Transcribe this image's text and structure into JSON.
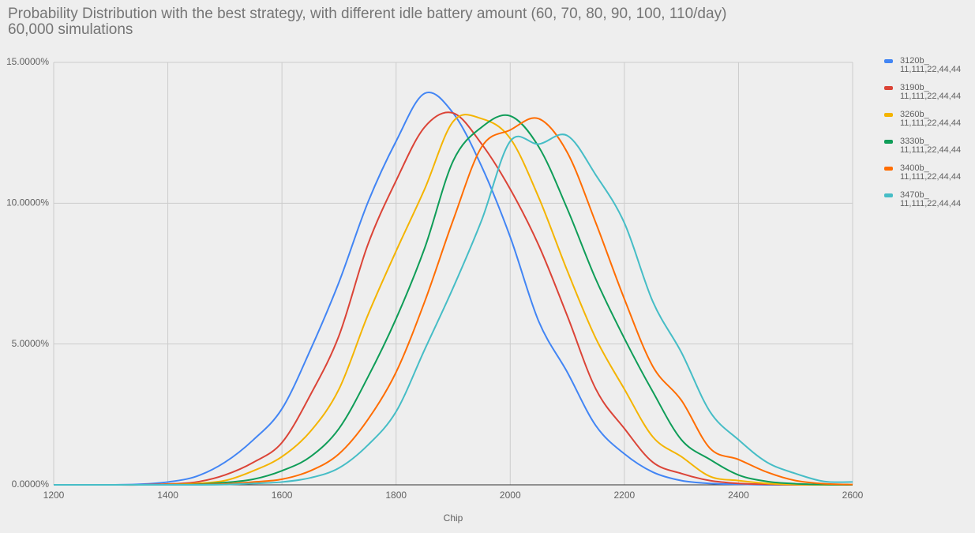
{
  "chart_data": {
    "type": "line",
    "title": "Probability Distribution with the best strategy, with different idle battery amount (60, 70, 80, 90, 100, 110/day)",
    "subtitle": "60,000 simulations",
    "x_label": "Chip",
    "x": [
      1200,
      1250,
      1300,
      1350,
      1400,
      1450,
      1500,
      1550,
      1600,
      1650,
      1700,
      1750,
      1800,
      1850,
      1900,
      1950,
      2000,
      2050,
      2100,
      2150,
      2200,
      2250,
      2300,
      2350,
      2400,
      2450,
      2500,
      2550,
      2600
    ],
    "xlim": [
      1200,
      2600
    ],
    "xticks": [
      1200,
      1400,
      1600,
      1800,
      2000,
      2200,
      2400,
      2600
    ],
    "ylim": [
      0,
      15
    ],
    "yticks": [
      {
        "value": 0,
        "label": "0.0000%"
      },
      {
        "value": 5,
        "label": "5.0000%"
      },
      {
        "value": 10,
        "label": "10.0000%"
      },
      {
        "value": 15,
        "label": "15.0000%"
      }
    ],
    "grid": true,
    "legend": "right",
    "series": [
      {
        "name": "3120b_ 11,111,22,44,44",
        "color": "#4285f4",
        "values": [
          0,
          0,
          0,
          0.02,
          0.1,
          0.3,
          0.8,
          1.6,
          2.7,
          4.8,
          7.2,
          10,
          12.2,
          13.9,
          13.2,
          11.3,
          8.8,
          5.8,
          4.0,
          2.1,
          1.1,
          0.45,
          0.15,
          0.05,
          0.02,
          0,
          0,
          0,
          0
        ]
      },
      {
        "name": "3190b_ 11,111,22,44,44",
        "color": "#db4437",
        "values": [
          0,
          0,
          0,
          0,
          0.03,
          0.1,
          0.35,
          0.8,
          1.5,
          3.2,
          5.3,
          8.5,
          10.8,
          12.7,
          13.2,
          12.1,
          10.5,
          8.5,
          6.0,
          3.4,
          2.0,
          0.8,
          0.4,
          0.15,
          0.05,
          0.02,
          0,
          0,
          0
        ]
      },
      {
        "name": "3260b_ 11,111,22,44,44",
        "color": "#f4b400",
        "values": [
          0,
          0,
          0,
          0,
          0.01,
          0.05,
          0.15,
          0.5,
          1.0,
          1.9,
          3.4,
          6.0,
          8.3,
          10.5,
          12.9,
          13.0,
          12.3,
          10.2,
          7.6,
          5.2,
          3.4,
          1.7,
          1.0,
          0.3,
          0.15,
          0.05,
          0.01,
          0,
          0
        ]
      },
      {
        "name": "3330b_ 11,111,22,44,44",
        "color": "#0f9d58",
        "values": [
          0,
          0,
          0,
          0,
          0,
          0.02,
          0.08,
          0.2,
          0.5,
          1.0,
          2.0,
          3.8,
          5.9,
          8.4,
          11.5,
          12.7,
          13.1,
          12.0,
          9.8,
          7.3,
          5.2,
          3.3,
          1.6,
          0.9,
          0.35,
          0.12,
          0.04,
          0.01,
          0
        ]
      },
      {
        "name": "3400b_ 11,111,22,44,44",
        "color": "#ff6d01",
        "values": [
          0,
          0,
          0,
          0,
          0,
          0.01,
          0.03,
          0.1,
          0.2,
          0.5,
          1.1,
          2.3,
          4.0,
          6.5,
          9.4,
          12.0,
          12.6,
          13.0,
          11.8,
          9.3,
          6.6,
          4.2,
          3.0,
          1.3,
          0.9,
          0.45,
          0.15,
          0.04,
          0.01
        ]
      },
      {
        "name": "3470b_ 11,111,22,44,44",
        "color": "#46bdc6",
        "values": [
          0,
          0,
          0,
          0,
          0,
          0,
          0.01,
          0.05,
          0.1,
          0.25,
          0.6,
          1.4,
          2.6,
          4.8,
          7.0,
          9.4,
          12.2,
          12.1,
          12.4,
          11.0,
          9.3,
          6.5,
          4.7,
          2.6,
          1.6,
          0.8,
          0.4,
          0.12,
          0.1
        ]
      }
    ]
  }
}
